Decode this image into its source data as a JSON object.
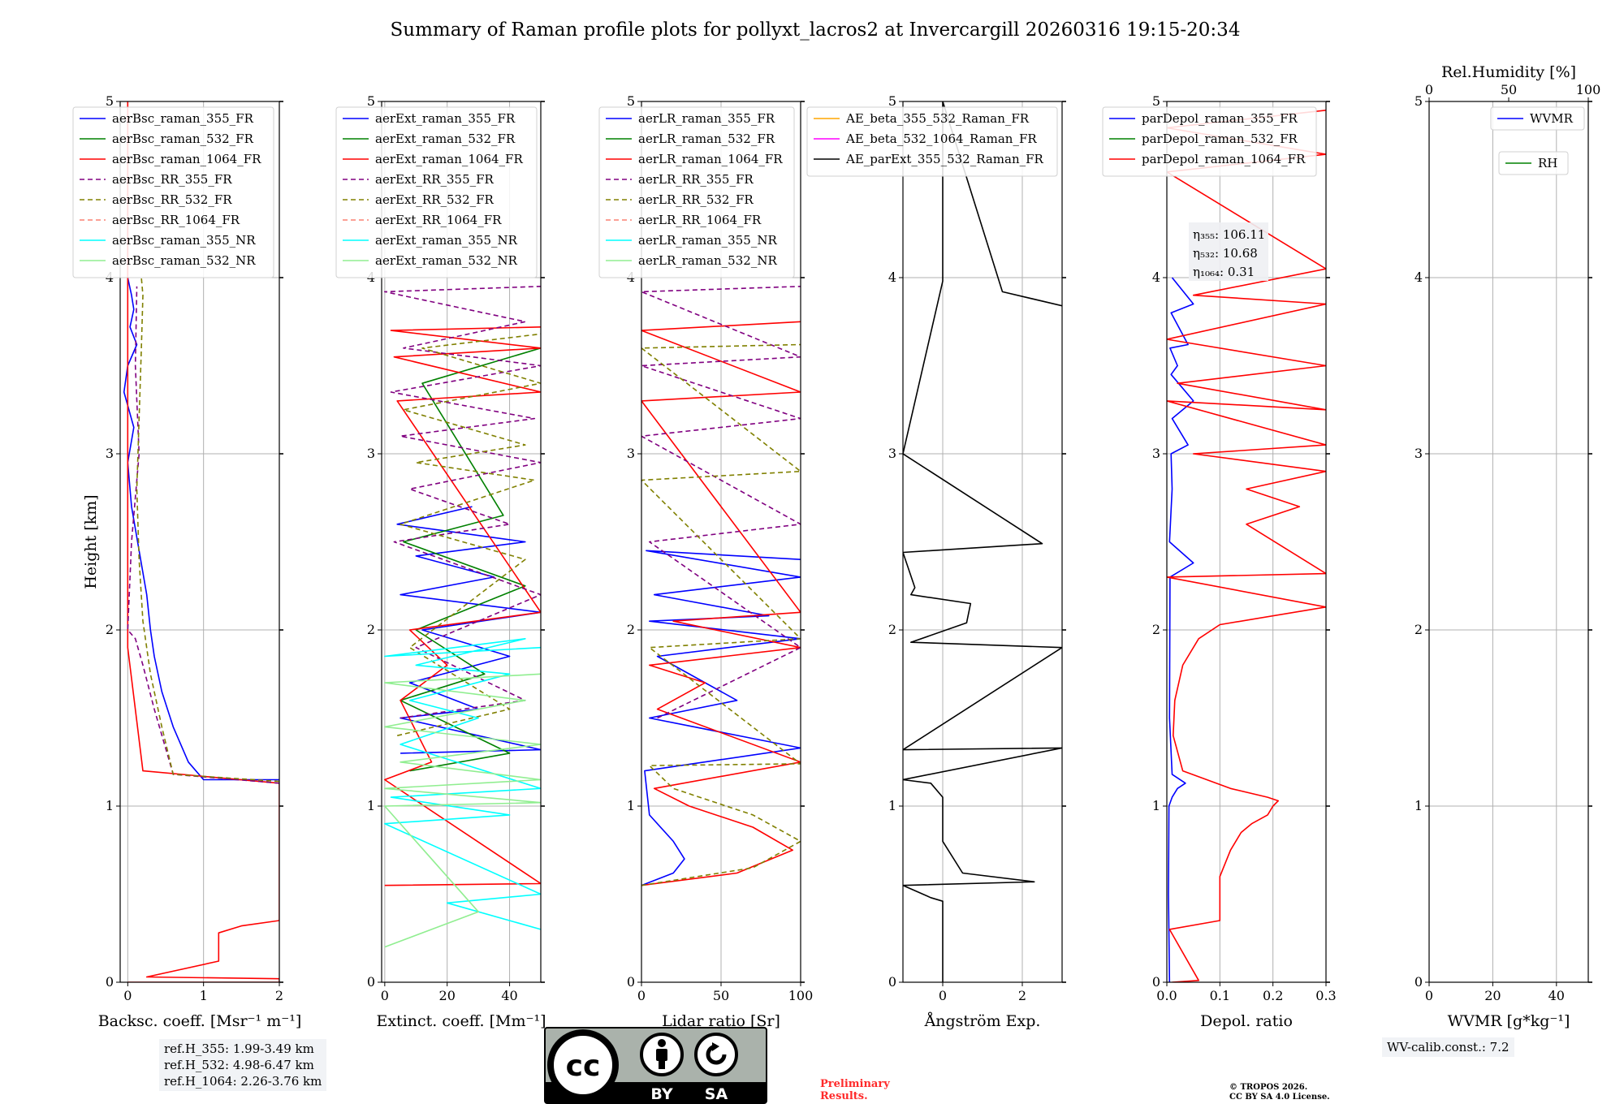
{
  "title": "Summary of Raman profile plots for pollyxt_lacros2 at Invercargill 20260316 19:15-20:34",
  "chart_data": [
    {
      "type": "line",
      "id": "bsc",
      "xlabel": "Backsc. coeff. [Msr⁻¹ m⁻¹]",
      "ylabel": "Height [km]",
      "xlim": [
        -0.1,
        2.0
      ],
      "ylim": [
        0,
        5
      ],
      "xticks": [
        0,
        1,
        2
      ],
      "xticklabels": [
        "0",
        "1",
        "2"
      ],
      "yticks": [
        0,
        1,
        2,
        3,
        4,
        5
      ],
      "yticklabels": [
        "0",
        "1",
        "2",
        "3",
        "4",
        "5"
      ],
      "grid": true,
      "legend_loc": "upper",
      "series": [
        {
          "name": "aerBsc_raman_355_FR",
          "color": "#0000ff",
          "dash": "",
          "x": [
            2.0,
            1.0,
            0.8,
            0.6,
            0.45,
            0.35,
            0.3,
            0.25,
            0.15,
            0.05,
            0.0,
            0.08,
            -0.05,
            0.0,
            0.12,
            0.03,
            0.08,
            0.05,
            0.0
          ],
          "y": [
            1.15,
            1.15,
            1.25,
            1.45,
            1.65,
            1.85,
            2.0,
            2.2,
            2.45,
            2.7,
            2.95,
            3.15,
            3.35,
            3.5,
            3.62,
            3.72,
            3.82,
            3.9,
            4.0
          ]
        },
        {
          "name": "aerBsc_raman_532_FR",
          "color": "#008000",
          "dash": "",
          "x": [],
          "y": []
        },
        {
          "name": "aerBsc_raman_1064_FR",
          "color": "#ff0000",
          "dash": "",
          "x": [
            0.0,
            2.0,
            2.0,
            0.25,
            1.2,
            1.2,
            1.5,
            2.0,
            2.0,
            0.2,
            0.0,
            0.0,
            0.0
          ],
          "y": [
            0.0,
            0.0,
            0.02,
            0.03,
            0.12,
            0.28,
            0.32,
            0.35,
            1.13,
            1.2,
            1.9,
            4.0,
            5.0
          ]
        },
        {
          "name": "aerBsc_RR_355_FR",
          "color": "#800080",
          "dash": "6,4",
          "x": [
            2.0,
            0.6,
            0.35,
            0.2,
            0.1,
            0.0,
            0.05,
            0.15,
            0.1,
            0.12
          ],
          "y": [
            1.13,
            1.18,
            1.55,
            1.8,
            1.95,
            2.0,
            2.5,
            3.0,
            3.5,
            3.95
          ]
        },
        {
          "name": "aerBsc_RR_532_FR",
          "color": "#808000",
          "dash": "6,4",
          "x": [
            2.0,
            0.6,
            0.45,
            0.3,
            0.2,
            0.15,
            0.12,
            0.15,
            0.18,
            0.2,
            0.18
          ],
          "y": [
            1.14,
            1.18,
            1.45,
            1.75,
            2.05,
            2.4,
            2.8,
            3.2,
            3.6,
            3.9,
            4.0
          ]
        },
        {
          "name": "aerBsc_RR_1064_FR",
          "color": "#fa8072",
          "dash": "6,4",
          "x": [],
          "y": []
        },
        {
          "name": "aerBsc_raman_355_NR",
          "color": "#00ffff",
          "dash": "",
          "x": [],
          "y": []
        },
        {
          "name": "aerBsc_raman_532_NR",
          "color": "#90ee90",
          "dash": "",
          "x": [],
          "y": []
        }
      ]
    },
    {
      "type": "line",
      "id": "ext",
      "xlabel": "Extinct. coeff. [Mm⁻¹]",
      "xlim": [
        -1,
        50
      ],
      "ylim": [
        0,
        5
      ],
      "xticks": [
        0,
        20,
        40
      ],
      "xticklabels": [
        "0",
        "20",
        "40"
      ],
      "yticks": [
        0,
        1,
        2,
        3,
        4,
        5
      ],
      "yticklabels": [
        "0",
        "1",
        "2",
        "3",
        "4",
        "5"
      ],
      "grid": true,
      "legend_loc": "upper",
      "series": [
        {
          "name": "aerExt_raman_355_FR",
          "color": "#0000ff",
          "dash": "",
          "x": [
            5,
            50,
            5,
            30,
            8,
            40,
            12,
            50,
            5,
            35,
            10,
            45,
            4,
            28
          ],
          "y": [
            1.3,
            1.32,
            1.5,
            1.55,
            1.7,
            1.85,
            2.0,
            2.1,
            2.2,
            2.3,
            2.42,
            2.5,
            2.6,
            2.7
          ]
        },
        {
          "name": "aerExt_raman_532_FR",
          "color": "#008000",
          "dash": "",
          "x": [
            8,
            40,
            5,
            32,
            10,
            45,
            6,
            38,
            12,
            50
          ],
          "y": [
            1.2,
            1.3,
            1.6,
            1.75,
            2.0,
            2.25,
            2.5,
            2.65,
            3.4,
            3.6
          ]
        },
        {
          "name": "aerExt_raman_1064_FR",
          "color": "#ff0000",
          "dash": "",
          "x": [
            0,
            50,
            0,
            15,
            5,
            20,
            8,
            50,
            4,
            50,
            3,
            50,
            2,
            50
          ],
          "y": [
            0.55,
            0.56,
            1.15,
            1.25,
            1.6,
            1.8,
            2.0,
            2.1,
            3.3,
            3.35,
            3.55,
            3.6,
            3.7,
            3.72
          ]
        },
        {
          "name": "aerExt_RR_355_FR",
          "color": "#800080",
          "dash": "6,4",
          "x": [
            5,
            45,
            10,
            50,
            3,
            40,
            8,
            50,
            5,
            48,
            2,
            50,
            6,
            45,
            0,
            50
          ],
          "y": [
            1.5,
            1.6,
            1.9,
            2.2,
            2.5,
            2.6,
            2.8,
            2.95,
            3.1,
            3.2,
            3.35,
            3.5,
            3.6,
            3.75,
            3.92,
            3.95
          ]
        },
        {
          "name": "aerExt_RR_532_FR",
          "color": "#808000",
          "dash": "6,4",
          "x": [
            4,
            40,
            8,
            45,
            5,
            48,
            10,
            45,
            6,
            50,
            12,
            50
          ],
          "y": [
            1.4,
            1.55,
            1.9,
            2.4,
            2.6,
            2.85,
            2.95,
            3.05,
            3.25,
            3.4,
            3.6,
            3.68
          ]
        },
        {
          "name": "aerExt_RR_1064_FR",
          "color": "#fa8072",
          "dash": "6,4",
          "x": [],
          "y": []
        },
        {
          "name": "aerExt_raman_355_NR",
          "color": "#00ffff",
          "dash": "",
          "x": [
            50,
            20,
            50,
            0,
            40,
            2,
            50,
            5,
            30,
            8,
            40,
            10,
            45,
            0,
            50
          ],
          "y": [
            0.3,
            0.45,
            0.5,
            0.9,
            0.95,
            1.05,
            1.1,
            1.35,
            1.5,
            1.6,
            1.75,
            1.8,
            1.95,
            1.85,
            1.9
          ]
        },
        {
          "name": "aerExt_raman_532_NR",
          "color": "#90ee90",
          "dash": "",
          "x": [
            0,
            30,
            0,
            50,
            0,
            50,
            5,
            50,
            0,
            45,
            0,
            50
          ],
          "y": [
            0.2,
            0.4,
            1.0,
            1.02,
            1.1,
            1.15,
            1.25,
            1.35,
            1.45,
            1.6,
            1.7,
            1.75
          ]
        }
      ]
    },
    {
      "type": "line",
      "id": "lr",
      "xlabel": "Lidar ratio [Sr]",
      "xlim": [
        0,
        100
      ],
      "ylim": [
        0,
        5
      ],
      "xticks": [
        0,
        50,
        100
      ],
      "xticklabels": [
        "0",
        "50",
        "100"
      ],
      "yticks": [
        0,
        1,
        2,
        3,
        4,
        5
      ],
      "yticklabels": [
        "0",
        "1",
        "2",
        "3",
        "4",
        "5"
      ],
      "grid": true,
      "legend_loc": "upper",
      "series": [
        {
          "name": "aerLR_raman_355_FR",
          "color": "#0000ff",
          "dash": "",
          "x": [
            0,
            20,
            27,
            20,
            5,
            2,
            100,
            5,
            60,
            10,
            100,
            5,
            80,
            8,
            100,
            3,
            100
          ],
          "y": [
            0.55,
            0.62,
            0.7,
            0.8,
            0.95,
            1.2,
            1.33,
            1.5,
            1.6,
            1.85,
            1.95,
            2.05,
            2.08,
            2.2,
            2.3,
            2.45,
            2.4
          ]
        },
        {
          "name": "aerLR_raman_532_FR",
          "color": "#008000",
          "dash": "",
          "x": [],
          "y": []
        },
        {
          "name": "aerLR_raman_1064_FR",
          "color": "#ff0000",
          "dash": "",
          "x": [
            0,
            60,
            95,
            70,
            30,
            8,
            100,
            10,
            40,
            5,
            100,
            20,
            100,
            0,
            100,
            0,
            100
          ],
          "y": [
            0.55,
            0.62,
            0.75,
            0.88,
            1.0,
            1.1,
            1.25,
            1.55,
            1.7,
            1.8,
            1.9,
            2.05,
            2.1,
            3.3,
            3.35,
            3.7,
            3.75
          ]
        },
        {
          "name": "aerLR_RR_355_FR",
          "color": "#800080",
          "dash": "6,4",
          "x": [
            10,
            100,
            5,
            100,
            0,
            100,
            0,
            100,
            0,
            100
          ],
          "y": [
            1.5,
            1.9,
            2.5,
            2.6,
            3.1,
            3.2,
            3.5,
            3.55,
            3.92,
            3.95
          ]
        },
        {
          "name": "aerLR_RR_532_FR",
          "color": "#808000",
          "dash": "6,4",
          "x": [
            0,
            70,
            100,
            70,
            20,
            5,
            100,
            5,
            100,
            0,
            100,
            0,
            100
          ],
          "y": [
            0.55,
            0.65,
            0.8,
            0.95,
            1.1,
            1.23,
            1.24,
            1.9,
            1.95,
            2.85,
            2.9,
            3.6,
            3.62
          ]
        },
        {
          "name": "aerLR_RR_1064_FR",
          "color": "#fa8072",
          "dash": "6,4",
          "x": [],
          "y": []
        },
        {
          "name": "aerLR_raman_355_NR",
          "color": "#00ffff",
          "dash": "",
          "x": [],
          "y": []
        },
        {
          "name": "aerLR_raman_532_NR",
          "color": "#90ee90",
          "dash": "",
          "x": [],
          "y": []
        }
      ]
    },
    {
      "type": "line",
      "id": "ae",
      "xlabel": "Ångström Exp.",
      "xlim": [
        -1,
        3
      ],
      "ylim": [
        0,
        5
      ],
      "xticks": [
        0,
        2
      ],
      "xticklabels": [
        "0",
        "2"
      ],
      "yticks": [
        0,
        1,
        2,
        3,
        4,
        5
      ],
      "yticklabels": [
        "0",
        "1",
        "2",
        "3",
        "4",
        "5"
      ],
      "grid": true,
      "legend_loc": "upper",
      "series": [
        {
          "name": "AE_beta_355_532_Raman_FR",
          "color": "#ffa500",
          "dash": "",
          "x": [],
          "y": []
        },
        {
          "name": "AE_beta_532_1064_Raman_FR",
          "color": "#ff00ff",
          "dash": "",
          "x": [],
          "y": []
        },
        {
          "name": "AE_parExt_355_532_Raman_FR",
          "color": "#000000",
          "dash": "",
          "x": [
            0.0,
            0.0,
            -0.3,
            -0.8,
            -1.0,
            2.3,
            0.5,
            0.0,
            0.0,
            -0.3,
            -1.0,
            3.0,
            -1.0,
            3.0,
            -0.8,
            0.6,
            0.7,
            -0.8,
            -0.7,
            -1.0,
            2.5,
            -1.0,
            0.0,
            0.0,
            1.5,
            3.0
          ],
          "y": [
            0.0,
            0.46,
            0.48,
            0.53,
            0.55,
            0.57,
            0.62,
            0.8,
            1.05,
            1.13,
            1.15,
            1.33,
            1.32,
            1.9,
            1.93,
            2.04,
            2.15,
            2.2,
            2.24,
            2.44,
            2.49,
            3.0,
            3.98,
            5.0,
            3.92,
            3.84
          ]
        }
      ]
    },
    {
      "type": "line",
      "id": "depol",
      "xlabel": "Depol. ratio",
      "xlim": [
        0,
        0.3
      ],
      "ylim": [
        0,
        5
      ],
      "xticks": [
        0.0,
        0.1,
        0.2,
        0.3
      ],
      "xticklabels": [
        "0.0",
        "0.1",
        "0.2",
        "0.3"
      ],
      "yticks": [
        0,
        1,
        2,
        3,
        4,
        5
      ],
      "yticklabels": [
        "0",
        "1",
        "2",
        "3",
        "4",
        "5"
      ],
      "grid": true,
      "legend_loc": "upper-left",
      "series": [
        {
          "name": "parDepol_raman_355_FR",
          "color": "#0000ff",
          "dash": "",
          "x": [
            0.005,
            0.003,
            0.004,
            0.01,
            0.02,
            0.035,
            0.01,
            0.005,
            0.006,
            0.05,
            0.005,
            0.01,
            0.008,
            0.04,
            0.01,
            0.05,
            0.008,
            0.02,
            0.006,
            0.04,
            0.008,
            0.05,
            0.01
          ],
          "y": [
            0.0,
            0.5,
            1.0,
            1.05,
            1.1,
            1.13,
            1.18,
            1.5,
            2.3,
            2.38,
            2.5,
            2.8,
            3.0,
            3.05,
            3.2,
            3.3,
            3.45,
            3.5,
            3.6,
            3.62,
            3.8,
            3.85,
            4.0
          ]
        },
        {
          "name": "parDepol_raman_532_FR",
          "color": "#008000",
          "dash": "",
          "x": [],
          "y": []
        },
        {
          "name": "parDepol_raman_1064_FR",
          "color": "#ff0000",
          "dash": "",
          "x": [
            0.01,
            0.06,
            0.005,
            0.1,
            0.1,
            0.12,
            0.14,
            0.16,
            0.19,
            0.2,
            0.21,
            0.19,
            0.12,
            0.03,
            0.012,
            0.015,
            0.03,
            0.06,
            0.1,
            0.3,
            0.0,
            0.3,
            0.15,
            0.25,
            0.15,
            0.3,
            0.05,
            0.3,
            0.0,
            0.3,
            0.02,
            0.3,
            0.0,
            0.3,
            0.05,
            0.3,
            0.0,
            0.3,
            0.0,
            0.3
          ],
          "y": [
            0.0,
            0.01,
            0.3,
            0.35,
            0.6,
            0.75,
            0.85,
            0.9,
            0.95,
            1.0,
            1.03,
            1.05,
            1.1,
            1.2,
            1.4,
            1.6,
            1.8,
            1.95,
            2.03,
            2.13,
            2.3,
            2.32,
            2.6,
            2.7,
            2.8,
            2.9,
            3.0,
            3.05,
            3.3,
            3.25,
            3.4,
            3.5,
            3.65,
            3.85,
            3.9,
            4.05,
            4.6,
            4.7,
            4.85,
            4.95
          ]
        }
      ],
      "annotations": [
        {
          "label": "η₃₅₅: 106.11"
        },
        {
          "label": "η₅₃₂: 10.68"
        },
        {
          "label": "η₁₀₆₄: 0.31"
        }
      ]
    },
    {
      "type": "line",
      "id": "wvmr",
      "xlabel": "WVMR [g*kg⁻¹]",
      "xlim": [
        0,
        50
      ],
      "ylim": [
        0,
        5
      ],
      "xticks": [
        0,
        20,
        40
      ],
      "xticklabels": [
        "0",
        "20",
        "40"
      ],
      "yticks": [
        0,
        1,
        2,
        3,
        4,
        5
      ],
      "yticklabels": [
        "0",
        "1",
        "2",
        "3",
        "4",
        "5"
      ],
      "grid": true,
      "legend_loc": "upper-right",
      "top_axis": {
        "label": "Rel.Humidity [%]",
        "xlim": [
          0,
          100
        ],
        "ticks": [
          0,
          50,
          100
        ],
        "ticklabels": [
          "0",
          "50",
          "100"
        ]
      },
      "series": [
        {
          "name": "WVMR",
          "color": "#0000ff",
          "dash": "",
          "x": [],
          "y": []
        },
        {
          "name": "RH",
          "color": "#008000",
          "dash": "",
          "x": [],
          "y": []
        }
      ]
    }
  ],
  "ref_heights": [
    "ref.H_355: 1.99-3.49 km",
    "ref.H_532: 4.98-6.47 km",
    "ref.H_1064: 2.26-3.76 km"
  ],
  "wv_calib": "WV-calib.const.: 7.2",
  "license_badge": {
    "left": "cc",
    "by": "BY",
    "sa": "SA"
  },
  "preliminary": [
    "Preliminary",
    "Results."
  ],
  "copyright": [
    "© TROPOS 2026.",
    "CC BY SA 4.0 License."
  ]
}
